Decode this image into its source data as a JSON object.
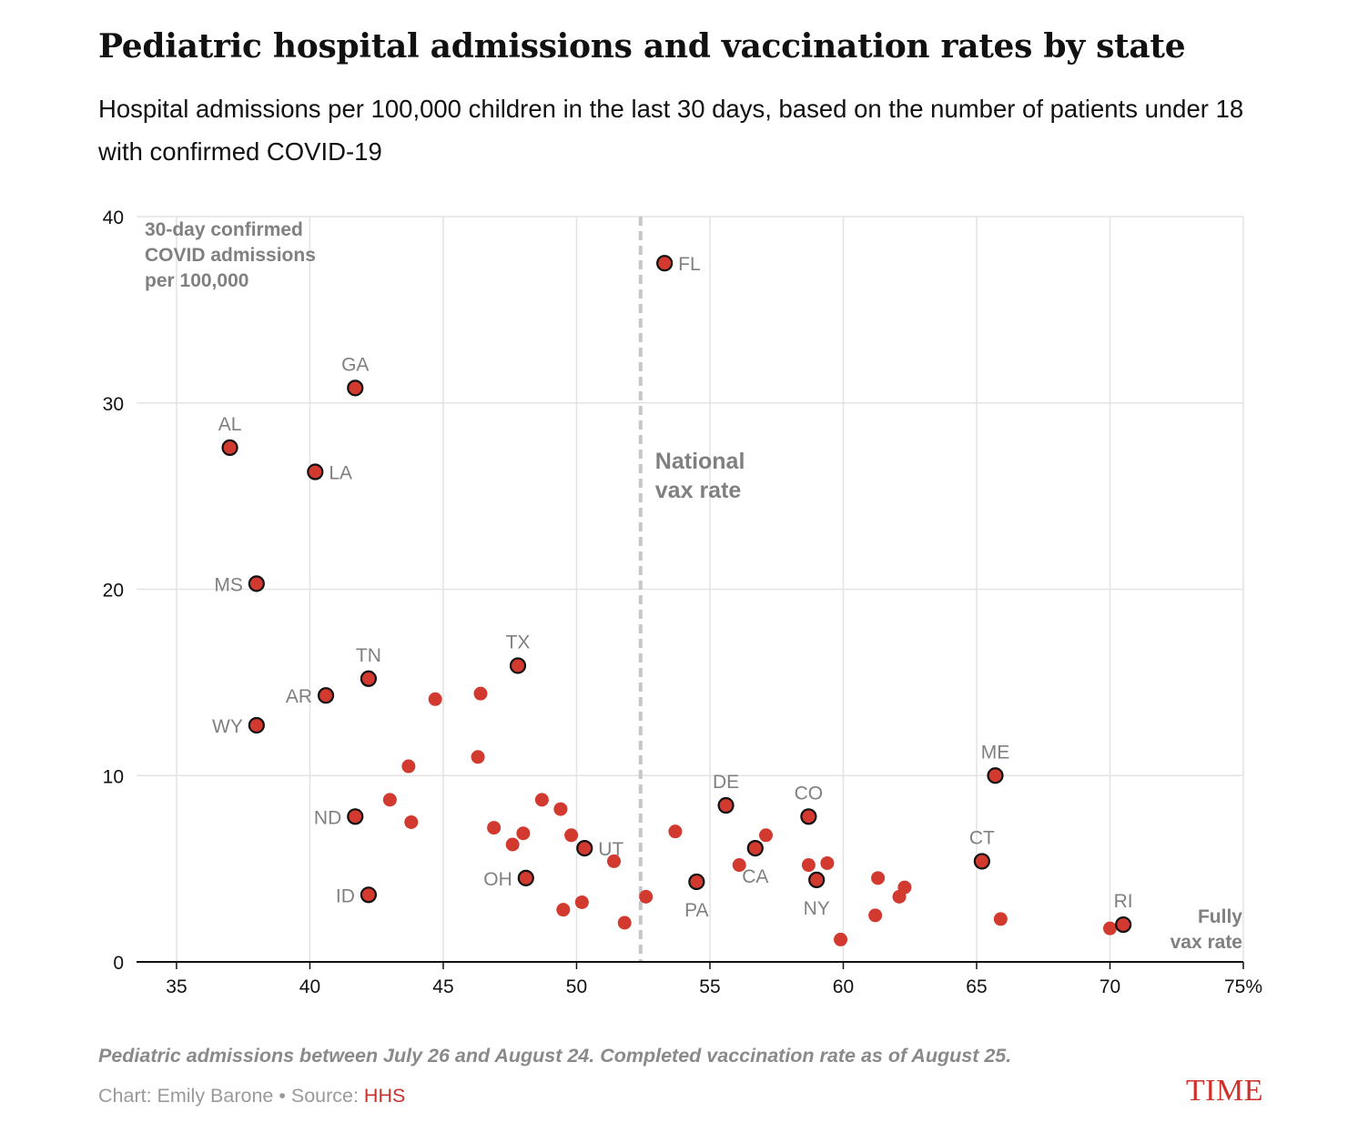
{
  "title": "Pediatric hospital admissions and vaccination rates by state",
  "subtitle": "Hospital admissions per 100,000 children in the last 30 days, based on the number of patients under 18 with confirmed COVID-19",
  "footnote": "Pediatric admissions between July 26 and August 24. Completed vaccination rate as of August 25.",
  "credit": {
    "prefix": "Chart: Emily Barone • Source: ",
    "source": "HHS"
  },
  "logo_text": "TIME",
  "colors": {
    "dot": "#d23a30",
    "dot_outline": "#111111",
    "reference_line": "#c7c7c7",
    "grid": "#e3e3e3",
    "annotation": "#808080",
    "source_link": "#c8312a"
  },
  "chart_data": {
    "type": "scatter",
    "xlabel": "Fully vax rate",
    "ylabel": "30-day confirmed COVID admissions per 100,000",
    "xlim": [
      33.5,
      75
    ],
    "ylim": [
      0,
      40
    ],
    "x_ticks": [
      35,
      40,
      45,
      50,
      55,
      60,
      65,
      70,
      75
    ],
    "x_tick_labels": [
      "35",
      "40",
      "45",
      "50",
      "55",
      "60",
      "65",
      "70",
      "75%"
    ],
    "y_ticks": [
      0,
      10,
      20,
      30,
      40
    ],
    "y_tick_labels": [
      "0",
      "10",
      "20",
      "30",
      "40"
    ],
    "ylabel_lines": [
      "30-day confirmed",
      "COVID admissions",
      "per 100,000"
    ],
    "xlabel_lines": [
      "Fully",
      "vax rate"
    ],
    "grid": true,
    "reference_line": {
      "x": 52.4,
      "label_lines": [
        "National",
        "vax rate"
      ]
    },
    "labeled_points": [
      {
        "state": "FL",
        "x": 53.3,
        "y": 37.5,
        "label_pos": "right"
      },
      {
        "state": "GA",
        "x": 41.7,
        "y": 30.8,
        "label_pos": "top"
      },
      {
        "state": "AL",
        "x": 37.0,
        "y": 27.6,
        "label_pos": "top"
      },
      {
        "state": "LA",
        "x": 40.2,
        "y": 26.3,
        "label_pos": "right"
      },
      {
        "state": "MS",
        "x": 38.0,
        "y": 20.3,
        "label_pos": "left"
      },
      {
        "state": "TX",
        "x": 47.8,
        "y": 15.9,
        "label_pos": "top"
      },
      {
        "state": "TN",
        "x": 42.2,
        "y": 15.2,
        "label_pos": "top"
      },
      {
        "state": "AR",
        "x": 40.6,
        "y": 14.3,
        "label_pos": "left"
      },
      {
        "state": "WY",
        "x": 38.0,
        "y": 12.7,
        "label_pos": "left"
      },
      {
        "state": "ME",
        "x": 65.7,
        "y": 10.0,
        "label_pos": "top"
      },
      {
        "state": "DE",
        "x": 55.6,
        "y": 8.4,
        "label_pos": "top"
      },
      {
        "state": "CO",
        "x": 58.7,
        "y": 7.8,
        "label_pos": "top"
      },
      {
        "state": "ND",
        "x": 41.7,
        "y": 7.8,
        "label_pos": "left"
      },
      {
        "state": "UT",
        "x": 50.3,
        "y": 6.1,
        "label_pos": "right"
      },
      {
        "state": "CA",
        "x": 56.7,
        "y": 6.1,
        "label_pos": "bottom"
      },
      {
        "state": "CT",
        "x": 65.2,
        "y": 5.4,
        "label_pos": "top"
      },
      {
        "state": "OH",
        "x": 48.1,
        "y": 4.5,
        "label_pos": "left"
      },
      {
        "state": "NY",
        "x": 59.0,
        "y": 4.4,
        "label_pos": "bottom"
      },
      {
        "state": "PA",
        "x": 54.5,
        "y": 4.3,
        "label_pos": "bottom"
      },
      {
        "state": "ID",
        "x": 42.2,
        "y": 3.6,
        "label_pos": "left"
      },
      {
        "state": "RI",
        "x": 70.5,
        "y": 2.0,
        "label_pos": "top"
      }
    ],
    "unlabeled_points": [
      {
        "x": 44.7,
        "y": 14.1
      },
      {
        "x": 46.4,
        "y": 14.4
      },
      {
        "x": 46.3,
        "y": 11.0
      },
      {
        "x": 43.7,
        "y": 10.5
      },
      {
        "x": 43.0,
        "y": 8.7
      },
      {
        "x": 43.8,
        "y": 7.5
      },
      {
        "x": 48.7,
        "y": 8.7
      },
      {
        "x": 49.4,
        "y": 8.2
      },
      {
        "x": 46.9,
        "y": 7.2
      },
      {
        "x": 48.0,
        "y": 6.9
      },
      {
        "x": 49.8,
        "y": 6.8
      },
      {
        "x": 47.6,
        "y": 6.3
      },
      {
        "x": 51.4,
        "y": 5.4
      },
      {
        "x": 53.7,
        "y": 7.0
      },
      {
        "x": 57.1,
        "y": 6.8
      },
      {
        "x": 56.1,
        "y": 5.2
      },
      {
        "x": 58.7,
        "y": 5.2
      },
      {
        "x": 59.4,
        "y": 5.3
      },
      {
        "x": 61.3,
        "y": 4.5
      },
      {
        "x": 62.3,
        "y": 4.0
      },
      {
        "x": 62.1,
        "y": 3.5
      },
      {
        "x": 52.6,
        "y": 3.5
      },
      {
        "x": 50.2,
        "y": 3.2
      },
      {
        "x": 49.5,
        "y": 2.8
      },
      {
        "x": 51.8,
        "y": 2.1
      },
      {
        "x": 61.2,
        "y": 2.5
      },
      {
        "x": 65.9,
        "y": 2.3
      },
      {
        "x": 59.9,
        "y": 1.2
      },
      {
        "x": 70.0,
        "y": 1.8
      }
    ]
  }
}
